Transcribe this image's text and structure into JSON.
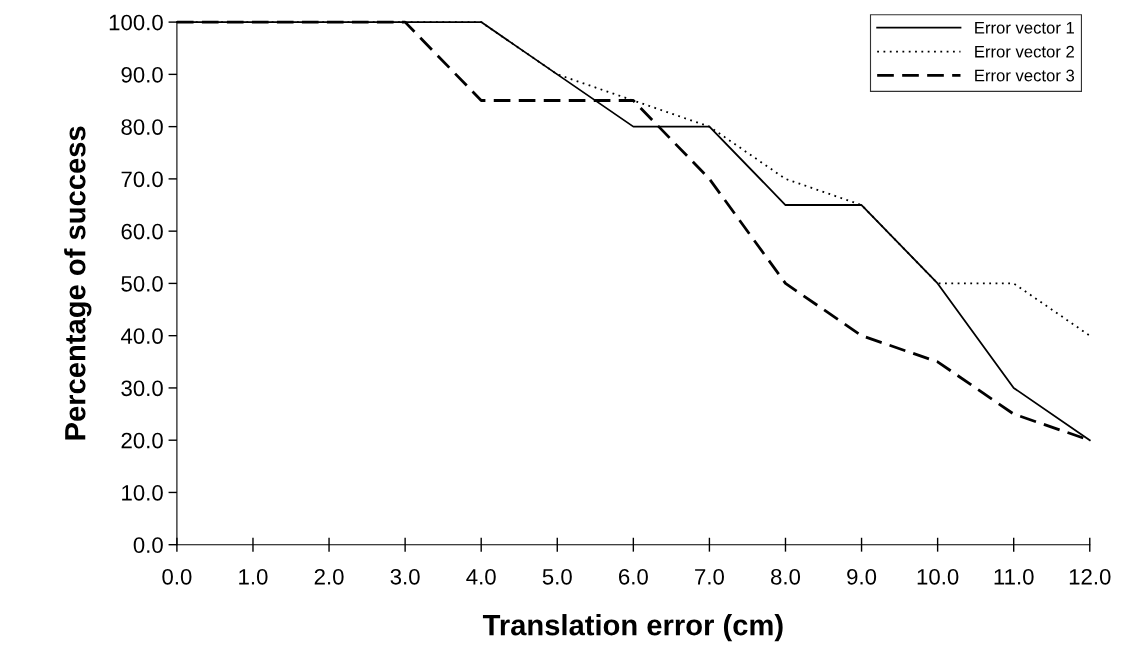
{
  "chart_data": {
    "type": "line",
    "xlabel": "Translation error (cm)",
    "ylabel": "Percentage of success",
    "x": [
      0,
      1,
      2,
      3,
      4,
      5,
      6,
      7,
      8,
      9,
      10,
      11,
      12
    ],
    "series": [
      {
        "name": "Error vector 1",
        "color": "#000000",
        "line_style": "solid",
        "values": [
          100,
          100,
          100,
          100,
          100,
          90,
          80,
          80,
          65,
          65,
          50,
          30,
          20
        ]
      },
      {
        "name": "Error vector 2",
        "color": "#000000",
        "line_style": "dotted",
        "values": [
          100,
          100,
          100,
          100,
          100,
          90,
          85,
          80,
          70,
          65,
          50,
          50,
          40
        ]
      },
      {
        "name": "Error vector 3",
        "color": "#000000",
        "line_style": "dashed",
        "values": [
          100,
          100,
          100,
          100,
          85,
          85,
          85,
          70,
          50,
          40,
          35,
          25,
          20
        ]
      }
    ],
    "xlim": [
      0,
      12
    ],
    "ylim": [
      0,
      100
    ],
    "xticks": [
      {
        "value": 0,
        "label": "0.0"
      },
      {
        "value": 1,
        "label": "1.0"
      },
      {
        "value": 2,
        "label": "2.0"
      },
      {
        "value": 3,
        "label": "3.0"
      },
      {
        "value": 4,
        "label": "4.0"
      },
      {
        "value": 5,
        "label": "5.0"
      },
      {
        "value": 6,
        "label": "6.0"
      },
      {
        "value": 7,
        "label": "7.0"
      },
      {
        "value": 8,
        "label": "8.0"
      },
      {
        "value": 9,
        "label": "9.0"
      },
      {
        "value": 10,
        "label": "10.0"
      },
      {
        "value": 11,
        "label": "11.0"
      },
      {
        "value": 12,
        "label": "12.0"
      }
    ],
    "yticks": [
      {
        "value": 0,
        "label": "0.0"
      },
      {
        "value": 10,
        "label": "10.0"
      },
      {
        "value": 20,
        "label": "20.0"
      },
      {
        "value": 30,
        "label": "30.0"
      },
      {
        "value": 40,
        "label": "40.0"
      },
      {
        "value": 50,
        "label": "50.0"
      },
      {
        "value": 60,
        "label": "60.0"
      },
      {
        "value": 70,
        "label": "70.0"
      },
      {
        "value": 80,
        "label": "80.0"
      },
      {
        "value": 90,
        "label": "90.0"
      },
      {
        "value": 100,
        "label": "100.0"
      }
    ],
    "grid": false,
    "legend": "top right",
    "marker": "none"
  }
}
